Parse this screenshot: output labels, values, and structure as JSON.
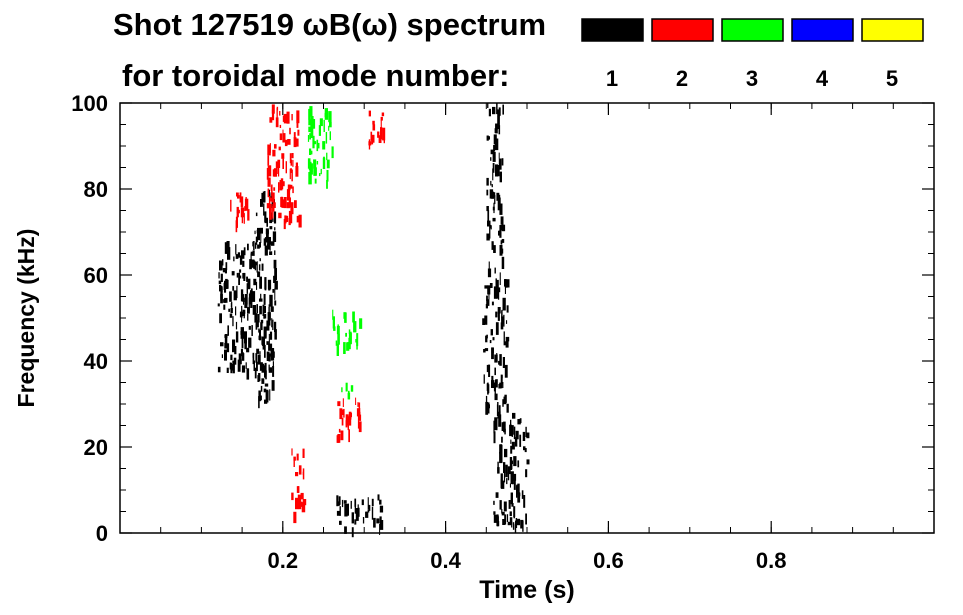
{
  "chart_data": {
    "type": "heatmap",
    "title_line1": "Shot 127519 ωB(ω) spectrum",
    "title_line2": "for toroidal mode number:",
    "xlabel": "Time (s)",
    "ylabel": "Frequency (kHz)",
    "xlim": [
      0.0,
      1.0
    ],
    "ylim": [
      0,
      100
    ],
    "x_ticks": [
      {
        "value": 0.2,
        "label": "0.2"
      },
      {
        "value": 0.4,
        "label": "0.4"
      },
      {
        "value": 0.6,
        "label": "0.6"
      },
      {
        "value": 0.8,
        "label": "0.8"
      }
    ],
    "y_ticks": [
      {
        "value": 0,
        "label": "0"
      },
      {
        "value": 20,
        "label": "20"
      },
      {
        "value": 40,
        "label": "40"
      },
      {
        "value": 60,
        "label": "60"
      },
      {
        "value": 80,
        "label": "80"
      },
      {
        "value": 100,
        "label": "100"
      }
    ],
    "legend": [
      {
        "mode": "1",
        "color": "#000000"
      },
      {
        "mode": "2",
        "color": "#ff0000"
      },
      {
        "mode": "3",
        "color": "#00ff00"
      },
      {
        "mode": "4",
        "color": "#0000ff"
      },
      {
        "mode": "5",
        "color": "#ffff00"
      }
    ],
    "regions": [
      {
        "mode": "1",
        "t": [
          0.12,
          0.185
        ],
        "f": [
          38,
          68
        ]
      },
      {
        "mode": "1",
        "t": [
          0.165,
          0.19
        ],
        "f": [
          30,
          80
        ]
      },
      {
        "mode": "1",
        "t": [
          0.265,
          0.32
        ],
        "f": [
          1,
          9
        ]
      },
      {
        "mode": "1",
        "t": [
          0.445,
          0.475
        ],
        "f": [
          28,
          60
        ]
      },
      {
        "mode": "1",
        "t": [
          0.45,
          0.47
        ],
        "f": [
          60,
          100
        ]
      },
      {
        "mode": "1",
        "t": [
          0.458,
          0.5
        ],
        "f": [
          2,
          28
        ]
      },
      {
        "mode": "2",
        "t": [
          0.18,
          0.22
        ],
        "f": [
          73,
          100
        ]
      },
      {
        "mode": "2",
        "t": [
          0.135,
          0.16
        ],
        "f": [
          72,
          80
        ]
      },
      {
        "mode": "2",
        "t": [
          0.265,
          0.295
        ],
        "f": [
          22,
          32
        ]
      },
      {
        "mode": "2",
        "t": [
          0.21,
          0.225
        ],
        "f": [
          4,
          20
        ]
      },
      {
        "mode": "2",
        "t": [
          0.305,
          0.325
        ],
        "f": [
          90,
          100
        ]
      },
      {
        "mode": "3",
        "t": [
          0.23,
          0.26
        ],
        "f": [
          82,
          100
        ]
      },
      {
        "mode": "3",
        "t": [
          0.26,
          0.295
        ],
        "f": [
          44,
          52
        ]
      },
      {
        "mode": "3",
        "t": [
          0.27,
          0.285
        ],
        "f": [
          31,
          35
        ]
      }
    ]
  }
}
